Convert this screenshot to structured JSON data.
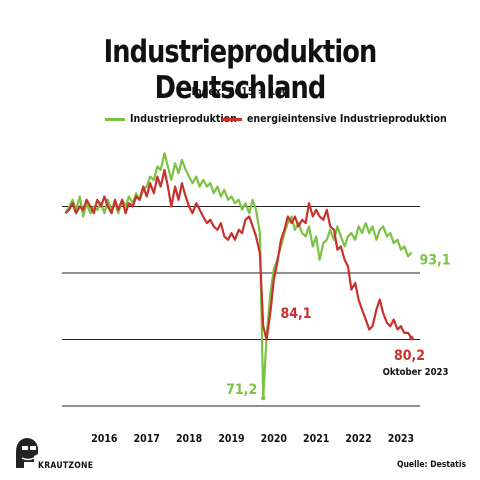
{
  "title": "Industrieproduktion Deutschland",
  "subtitle": "Index: 2015 = 100",
  "brand": "KRAUTZONE",
  "source": "Quelle: Destatis",
  "colors": {
    "green": "#7cc242",
    "red": "#c8312c",
    "grid": "#222222"
  },
  "chart_data": {
    "type": "line",
    "title": "Industrieproduktion Deutschland",
    "subtitle": "Index: 2015 = 100",
    "x_ticks": [
      "2016",
      "2017",
      "2018",
      "2019",
      "2020",
      "2021",
      "2022",
      "2023"
    ],
    "x_range": [
      2015.5,
      2023.95
    ],
    "y_range": [
      70,
      110
    ],
    "gridlines": [
      70,
      80,
      90,
      100
    ],
    "legend_position": "top",
    "series": [
      {
        "name": "Industrieproduktion",
        "color": "#7cc242",
        "points": [
          [
            2015.58,
            99.0
          ],
          [
            2015.67,
            100.0
          ],
          [
            2015.75,
            101.0
          ],
          [
            2015.83,
            99.5
          ],
          [
            2015.92,
            101.5
          ],
          [
            2016.0,
            98.5
          ],
          [
            2016.08,
            100.5
          ],
          [
            2016.17,
            99.0
          ],
          [
            2016.25,
            100.0
          ],
          [
            2016.33,
            99.5
          ],
          [
            2016.42,
            100.5
          ],
          [
            2016.5,
            99.0
          ],
          [
            2016.58,
            101.0
          ],
          [
            2016.67,
            99.5
          ],
          [
            2016.75,
            100.5
          ],
          [
            2016.83,
            99.0
          ],
          [
            2016.92,
            101.0
          ],
          [
            2017.0,
            100.0
          ],
          [
            2017.08,
            101.5
          ],
          [
            2017.17,
            100.5
          ],
          [
            2017.25,
            102.0
          ],
          [
            2017.33,
            101.0
          ],
          [
            2017.42,
            102.5
          ],
          [
            2017.5,
            103.0
          ],
          [
            2017.58,
            104.5
          ],
          [
            2017.67,
            104.0
          ],
          [
            2017.75,
            106.0
          ],
          [
            2017.83,
            105.5
          ],
          [
            2017.92,
            108.0
          ],
          [
            2018.0,
            106.0
          ],
          [
            2018.08,
            104.0
          ],
          [
            2018.17,
            106.5
          ],
          [
            2018.25,
            105.0
          ],
          [
            2018.33,
            107.0
          ],
          [
            2018.42,
            105.5
          ],
          [
            2018.5,
            104.5
          ],
          [
            2018.58,
            103.5
          ],
          [
            2018.67,
            104.5
          ],
          [
            2018.75,
            103.0
          ],
          [
            2018.83,
            104.0
          ],
          [
            2018.92,
            103.0
          ],
          [
            2019.0,
            103.5
          ],
          [
            2019.08,
            102.0
          ],
          [
            2019.17,
            103.0
          ],
          [
            2019.25,
            101.5
          ],
          [
            2019.33,
            102.5
          ],
          [
            2019.42,
            101.0
          ],
          [
            2019.5,
            101.5
          ],
          [
            2019.58,
            100.5
          ],
          [
            2019.67,
            101.0
          ],
          [
            2019.75,
            99.5
          ],
          [
            2019.83,
            100.5
          ],
          [
            2019.92,
            99.0
          ],
          [
            2020.0,
            101.0
          ],
          [
            2020.08,
            99.5
          ],
          [
            2020.17,
            96.0
          ],
          [
            2020.25,
            71.2
          ],
          [
            2020.33,
            80.5
          ],
          [
            2020.42,
            87.0
          ],
          [
            2020.5,
            90.5
          ],
          [
            2020.58,
            92.0
          ],
          [
            2020.67,
            94.0
          ],
          [
            2020.75,
            96.0
          ],
          [
            2020.83,
            97.5
          ],
          [
            2020.92,
            98.5
          ],
          [
            2021.0,
            96.5
          ],
          [
            2021.08,
            97.5
          ],
          [
            2021.17,
            96.0
          ],
          [
            2021.25,
            95.5
          ],
          [
            2021.33,
            97.0
          ],
          [
            2021.42,
            94.0
          ],
          [
            2021.5,
            95.5
          ],
          [
            2021.58,
            92.0
          ],
          [
            2021.67,
            94.5
          ],
          [
            2021.75,
            95.0
          ],
          [
            2021.83,
            96.5
          ],
          [
            2021.92,
            95.0
          ],
          [
            2022.0,
            97.0
          ],
          [
            2022.08,
            95.5
          ],
          [
            2022.17,
            94.0
          ],
          [
            2022.25,
            95.5
          ],
          [
            2022.33,
            96.0
          ],
          [
            2022.42,
            95.0
          ],
          [
            2022.5,
            97.0
          ],
          [
            2022.58,
            96.0
          ],
          [
            2022.67,
            97.5
          ],
          [
            2022.75,
            96.0
          ],
          [
            2022.83,
            97.0
          ],
          [
            2022.92,
            95.0
          ],
          [
            2023.0,
            96.5
          ],
          [
            2023.08,
            97.0
          ],
          [
            2023.17,
            95.5
          ],
          [
            2023.25,
            96.0
          ],
          [
            2023.33,
            94.5
          ],
          [
            2023.42,
            95.0
          ],
          [
            2023.5,
            93.5
          ],
          [
            2023.58,
            94.0
          ],
          [
            2023.67,
            92.5
          ],
          [
            2023.75,
            93.1
          ]
        ],
        "end_label": "93,1",
        "min_label": "71,2"
      },
      {
        "name": "energieintensive Industrieproduktion",
        "color": "#c8312c",
        "points": [
          [
            2015.58,
            99.0
          ],
          [
            2015.67,
            99.5
          ],
          [
            2015.75,
            100.5
          ],
          [
            2015.83,
            99.0
          ],
          [
            2015.92,
            100.0
          ],
          [
            2016.0,
            99.5
          ],
          [
            2016.08,
            101.0
          ],
          [
            2016.17,
            100.0
          ],
          [
            2016.25,
            99.0
          ],
          [
            2016.33,
            101.0
          ],
          [
            2016.42,
            100.0
          ],
          [
            2016.5,
            101.5
          ],
          [
            2016.58,
            100.0
          ],
          [
            2016.67,
            99.0
          ],
          [
            2016.75,
            101.0
          ],
          [
            2016.83,
            99.5
          ],
          [
            2016.92,
            101.0
          ],
          [
            2017.0,
            99.0
          ],
          [
            2017.08,
            100.5
          ],
          [
            2017.17,
            100.0
          ],
          [
            2017.25,
            101.5
          ],
          [
            2017.33,
            101.0
          ],
          [
            2017.42,
            103.0
          ],
          [
            2017.5,
            101.5
          ],
          [
            2017.58,
            103.5
          ],
          [
            2017.67,
            102.0
          ],
          [
            2017.75,
            104.5
          ],
          [
            2017.83,
            103.0
          ],
          [
            2017.92,
            105.5
          ],
          [
            2018.0,
            103.0
          ],
          [
            2018.08,
            100.0
          ],
          [
            2018.17,
            103.0
          ],
          [
            2018.25,
            101.0
          ],
          [
            2018.33,
            103.5
          ],
          [
            2018.42,
            101.5
          ],
          [
            2018.5,
            100.0
          ],
          [
            2018.58,
            99.0
          ],
          [
            2018.67,
            100.5
          ],
          [
            2018.75,
            99.5
          ],
          [
            2018.83,
            98.5
          ],
          [
            2018.92,
            97.5
          ],
          [
            2019.0,
            98.0
          ],
          [
            2019.08,
            97.0
          ],
          [
            2019.17,
            96.5
          ],
          [
            2019.25,
            97.5
          ],
          [
            2019.33,
            95.5
          ],
          [
            2019.42,
            95.0
          ],
          [
            2019.5,
            96.0
          ],
          [
            2019.58,
            95.0
          ],
          [
            2019.67,
            96.5
          ],
          [
            2019.75,
            96.0
          ],
          [
            2019.83,
            98.0
          ],
          [
            2019.92,
            98.5
          ],
          [
            2020.0,
            97.0
          ],
          [
            2020.08,
            95.5
          ],
          [
            2020.17,
            93.0
          ],
          [
            2020.25,
            82.0
          ],
          [
            2020.33,
            80.0
          ],
          [
            2020.42,
            84.1
          ],
          [
            2020.5,
            89.0
          ],
          [
            2020.58,
            91.5
          ],
          [
            2020.67,
            95.0
          ],
          [
            2020.75,
            96.5
          ],
          [
            2020.83,
            98.5
          ],
          [
            2020.92,
            97.5
          ],
          [
            2021.0,
            98.5
          ],
          [
            2021.08,
            97.0
          ],
          [
            2021.17,
            98.0
          ],
          [
            2021.25,
            97.5
          ],
          [
            2021.33,
            100.5
          ],
          [
            2021.42,
            98.5
          ],
          [
            2021.5,
            99.5
          ],
          [
            2021.58,
            98.5
          ],
          [
            2021.67,
            98.0
          ],
          [
            2021.75,
            99.5
          ],
          [
            2021.83,
            97.0
          ],
          [
            2021.92,
            96.5
          ],
          [
            2022.0,
            93.5
          ],
          [
            2022.08,
            94.0
          ],
          [
            2022.17,
            92.0
          ],
          [
            2022.25,
            91.0
          ],
          [
            2022.33,
            87.5
          ],
          [
            2022.42,
            88.5
          ],
          [
            2022.5,
            86.0
          ],
          [
            2022.58,
            84.5
          ],
          [
            2022.67,
            83.0
          ],
          [
            2022.75,
            81.5
          ],
          [
            2022.83,
            82.0
          ],
          [
            2022.92,
            84.5
          ],
          [
            2023.0,
            86.0
          ],
          [
            2023.08,
            84.0
          ],
          [
            2023.17,
            82.5
          ],
          [
            2023.25,
            82.0
          ],
          [
            2023.33,
            83.0
          ],
          [
            2023.42,
            81.5
          ],
          [
            2023.5,
            82.0
          ],
          [
            2023.58,
            81.0
          ],
          [
            2023.67,
            81.0
          ],
          [
            2023.75,
            80.2
          ]
        ],
        "end_label": "80,2",
        "end_note": "Oktober 2023",
        "covid_label": "84,1"
      }
    ]
  }
}
